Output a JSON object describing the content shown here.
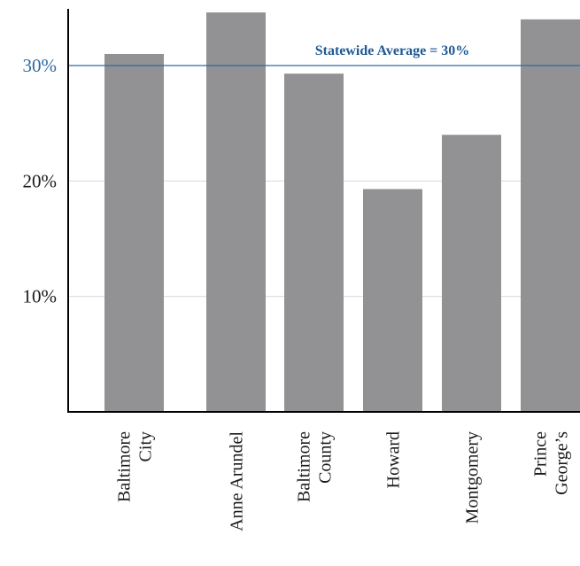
{
  "chart_data": {
    "type": "bar",
    "categories": [
      [
        "Baltimore",
        "City"
      ],
      [
        "Anne Arundel"
      ],
      [
        "Baltimore",
        "County"
      ],
      [
        "Howard"
      ],
      [
        "Montgomery"
      ],
      [
        "Prince",
        "George’s"
      ]
    ],
    "values": [
      31,
      34.6,
      29.3,
      19.3,
      24,
      34
    ],
    "yticks": [
      {
        "value": 10,
        "label": "10%"
      },
      {
        "value": 20,
        "label": "20%"
      },
      {
        "value": 30,
        "label": "30%",
        "highlight": true
      }
    ],
    "ylim": [
      0,
      35
    ],
    "reference_line": {
      "value": 30,
      "label": "Statewide Average = 30%"
    },
    "grid": true,
    "colors": {
      "bar": "#929295",
      "reference": "#2e6aa1",
      "reference_label": "#1f5a94",
      "grid": "#d9d9d9",
      "axis": "#000000",
      "tick_text": "#1a1a1a"
    }
  }
}
